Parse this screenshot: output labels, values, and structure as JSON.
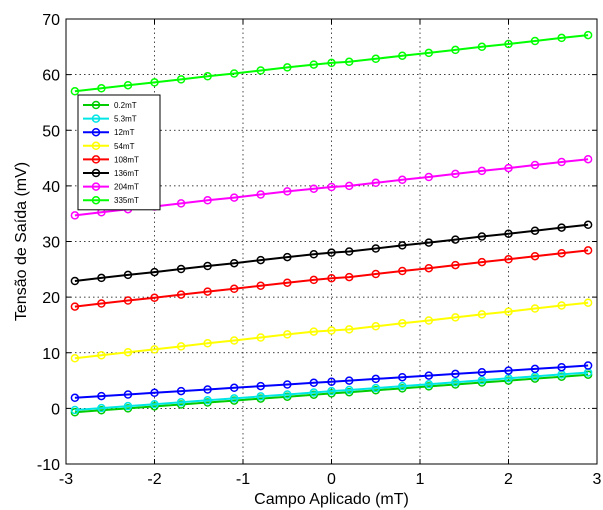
{
  "chart_data": {
    "type": "line",
    "title": "",
    "xlabel": "Campo Aplicado (mT)",
    "ylabel": "Tensão de Saída (mV)",
    "xlim": [
      -3,
      3
    ],
    "ylim": [
      -10,
      70
    ],
    "xticks": [
      -3,
      -2,
      -1,
      0,
      1,
      2,
      3
    ],
    "yticks": [
      -10,
      0,
      10,
      20,
      30,
      40,
      50,
      60,
      70
    ],
    "grid": true,
    "legend_position": "top-left",
    "x": [
      -2.9,
      -2.6,
      -2.3,
      -2.0,
      -1.7,
      -1.4,
      -1.1,
      -0.8,
      -0.5,
      -0.2,
      0.0,
      0.2,
      0.5,
      0.8,
      1.1,
      1.4,
      1.7,
      2.0,
      2.3,
      2.6,
      2.9
    ],
    "series": [
      {
        "name": "0.2mT",
        "color": "#00cc00",
        "values": [
          -0.7,
          -0.35,
          0.0,
          0.35,
          0.7,
          1.05,
          1.4,
          1.75,
          2.1,
          2.45,
          2.7,
          2.9,
          3.25,
          3.6,
          3.95,
          4.3,
          4.65,
          5.0,
          5.35,
          5.7,
          6.05
        ]
      },
      {
        "name": "5.3mT",
        "color": "#00e5e5",
        "values": [
          -0.3,
          0.05,
          0.4,
          0.75,
          1.1,
          1.45,
          1.8,
          2.15,
          2.5,
          2.85,
          3.1,
          3.3,
          3.65,
          4.0,
          4.35,
          4.7,
          5.05,
          5.4,
          5.75,
          6.1,
          6.45
        ]
      },
      {
        "name": "12mT",
        "color": "#0000ff",
        "values": [
          1.9,
          2.2,
          2.5,
          2.8,
          3.1,
          3.4,
          3.7,
          4.0,
          4.3,
          4.6,
          4.8,
          5.0,
          5.3,
          5.6,
          5.9,
          6.2,
          6.5,
          6.8,
          7.1,
          7.4,
          7.7
        ]
      },
      {
        "name": "54mT",
        "color": "#ffff00",
        "values": [
          9.0,
          9.55,
          10.1,
          10.6,
          11.15,
          11.7,
          12.2,
          12.75,
          13.3,
          13.8,
          14.0,
          14.2,
          14.75,
          15.3,
          15.8,
          16.35,
          16.9,
          17.4,
          17.95,
          18.5,
          19.0
        ]
      },
      {
        "name": "108mT",
        "color": "#ff0000",
        "values": [
          18.3,
          18.85,
          19.4,
          19.9,
          20.45,
          21.0,
          21.5,
          22.05,
          22.6,
          23.1,
          23.4,
          23.6,
          24.15,
          24.7,
          25.2,
          25.75,
          26.3,
          26.8,
          27.35,
          27.9,
          28.4
        ]
      },
      {
        "name": "136mT",
        "color": "#000000",
        "values": [
          22.9,
          23.45,
          24.0,
          24.5,
          25.05,
          25.6,
          26.1,
          26.65,
          27.2,
          27.7,
          28.0,
          28.2,
          28.75,
          29.3,
          29.8,
          30.35,
          30.9,
          31.4,
          31.95,
          32.5,
          33.0
        ]
      },
      {
        "name": "204mT",
        "color": "#ff00ff",
        "values": [
          34.7,
          35.25,
          35.8,
          36.3,
          36.85,
          37.4,
          37.9,
          38.45,
          39.0,
          39.5,
          39.8,
          40.0,
          40.55,
          41.1,
          41.6,
          42.15,
          42.7,
          43.2,
          43.75,
          44.3,
          44.8
        ]
      },
      {
        "name": "335mT",
        "color": "#00ff00",
        "values": [
          57.0,
          57.55,
          58.1,
          58.6,
          59.15,
          59.7,
          60.2,
          60.75,
          61.3,
          61.8,
          62.1,
          62.3,
          62.85,
          63.4,
          63.9,
          64.45,
          65.0,
          65.5,
          66.05,
          66.6,
          67.1
        ]
      }
    ]
  }
}
